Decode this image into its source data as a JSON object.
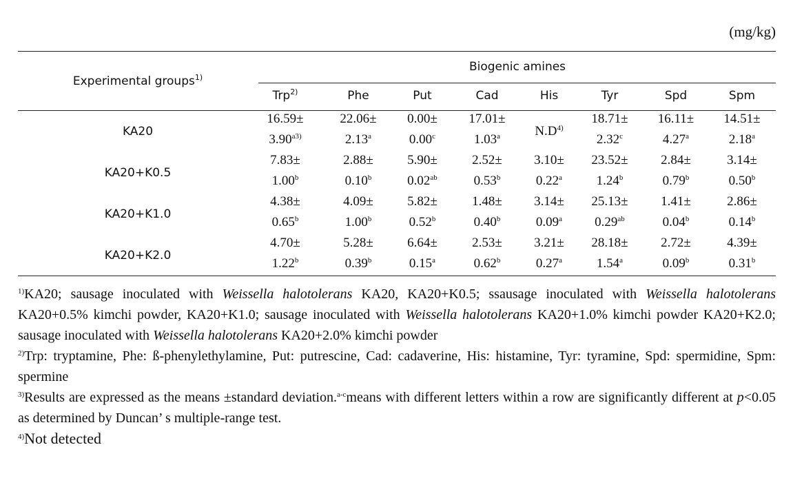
{
  "unit": "(mg/kg)",
  "table": {
    "group_header": {
      "text": "Experimental groups",
      "sup": "1)"
    },
    "span_header": "Biogenic amines",
    "columns": [
      {
        "label": "Trp",
        "sup": "2)"
      },
      {
        "label": "Phe"
      },
      {
        "label": "Put"
      },
      {
        "label": "Cad"
      },
      {
        "label": "His"
      },
      {
        "label": "Tyr"
      },
      {
        "label": "Spd"
      },
      {
        "label": "Spm"
      }
    ],
    "rows": [
      {
        "group": "KA20",
        "cells": [
          {
            "mean": "16.59±",
            "sd": "3.90",
            "letter": "a3)"
          },
          {
            "mean": "22.06±",
            "sd": "2.13",
            "letter": "a"
          },
          {
            "mean": "0.00±",
            "sd": "0.00",
            "letter": "c"
          },
          {
            "mean": "17.01±",
            "sd": "1.03",
            "letter": "a"
          },
          {
            "text": "N.D",
            "sup": "4)"
          },
          {
            "mean": "18.71±",
            "sd": "2.32",
            "letter": "c"
          },
          {
            "mean": "16.11±",
            "sd": "4.27",
            "letter": "a"
          },
          {
            "mean": "14.51±",
            "sd": "2.18",
            "letter": "a"
          }
        ]
      },
      {
        "group": "KA20+K0.5",
        "cells": [
          {
            "mean": "7.83±",
            "sd": "1.00",
            "letter": "b"
          },
          {
            "mean": "2.88±",
            "sd": "0.10",
            "letter": "b"
          },
          {
            "mean": "5.90±",
            "sd": "0.02",
            "letter": "ab"
          },
          {
            "mean": "2.52±",
            "sd": "0.53",
            "letter": "b"
          },
          {
            "mean": "3.10±",
            "sd": "0.22",
            "letter": "a"
          },
          {
            "mean": "23.52±",
            "sd": "1.24",
            "letter": "b"
          },
          {
            "mean": "2.84±",
            "sd": "0.79",
            "letter": "b"
          },
          {
            "mean": "3.14±",
            "sd": "0.50",
            "letter": "b"
          }
        ]
      },
      {
        "group": "KA20+K1.0",
        "cells": [
          {
            "mean": "4.38±",
            "sd": "0.65",
            "letter": "b"
          },
          {
            "mean": "4.09±",
            "sd": "1.00",
            "letter": "b"
          },
          {
            "mean": "5.82±",
            "sd": "0.52",
            "letter": "b"
          },
          {
            "mean": "1.48±",
            "sd": "0.40",
            "letter": "b"
          },
          {
            "mean": "3.14±",
            "sd": "0.09",
            "letter": "a"
          },
          {
            "mean": "25.13±",
            "sd": "0.29",
            "letter": "ab"
          },
          {
            "mean": "1.41±",
            "sd": "0.04",
            "letter": "b"
          },
          {
            "mean": "2.86±",
            "sd": "0.14",
            "letter": "b"
          }
        ]
      },
      {
        "group": "KA20+K2.0",
        "cells": [
          {
            "mean": "4.70±",
            "sd": "1.22",
            "letter": "b"
          },
          {
            "mean": "5.28±",
            "sd": "0.39",
            "letter": "b"
          },
          {
            "mean": "6.64±",
            "sd": "0.15",
            "letter": "a"
          },
          {
            "mean": "2.53±",
            "sd": "0.62",
            "letter": "b"
          },
          {
            "mean": "3.21±",
            "sd": "0.27",
            "letter": "a"
          },
          {
            "mean": "28.18±",
            "sd": "1.54",
            "letter": "a"
          },
          {
            "mean": "2.72±",
            "sd": "0.09",
            "letter": "b"
          },
          {
            "mean": "4.39±",
            "sd": "0.31",
            "letter": "b"
          }
        ]
      }
    ]
  },
  "footnotes": [
    {
      "sup": "1)",
      "parts": [
        {
          "text": "KA20; sausage inoculated with "
        },
        {
          "text": "Weissella halotolerans",
          "italic": true
        },
        {
          "text": " KA20, KA20+K0.5; ssausage inoculated with "
        },
        {
          "text": "Weissella halotolerans",
          "italic": true
        },
        {
          "text": " KA20+0.5% kimchi powder, KA20+K1.0; sausage inoculated with "
        },
        {
          "text": "Weissella halotolerans",
          "italic": true
        },
        {
          "text": " KA20+1.0% kimchi powder KA20+K2.0; sausage inoculated with "
        },
        {
          "text": "Weissella halotolerans",
          "italic": true
        },
        {
          "text": " KA20+2.0% kimchi powder"
        }
      ]
    },
    {
      "sup": "2)",
      "parts": [
        {
          "text": "Trp: tryptamine, Phe: ß-phenylethylamine, Put: putrescine, Cad: cadaverine, His: histamine, Tyr: tyramine, Spd: spermidine, Spm: spermine"
        }
      ]
    },
    {
      "sup": "3)",
      "parts": [
        {
          "text": "Results are expressed as the means ±standard deviation."
        },
        {
          "text": "a-c",
          "sup": true
        },
        {
          "text": "means with different letters within a row are significantly different at "
        },
        {
          "text": "p",
          "italic": true
        },
        {
          "text": "<0.05 as determined by Duncan’ s multiple-range test."
        }
      ]
    },
    {
      "sup": "4)",
      "parts": [
        {
          "text": "Not detected"
        }
      ]
    }
  ]
}
